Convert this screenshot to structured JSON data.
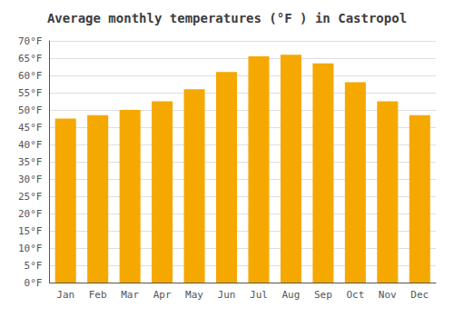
{
  "chart_data": {
    "type": "bar",
    "title": "Average monthly temperatures (°F ) in Castropol",
    "categories": [
      "Jan",
      "Feb",
      "Mar",
      "Apr",
      "May",
      "Jun",
      "Jul",
      "Aug",
      "Sep",
      "Oct",
      "Nov",
      "Dec"
    ],
    "values": [
      47.5,
      48.5,
      50.0,
      52.5,
      56.0,
      61.0,
      65.5,
      66.0,
      63.5,
      58.0,
      52.5,
      48.5
    ],
    "color": "#F5A800",
    "ylim": [
      0,
      70
    ],
    "yticks": [
      {
        "value": 0,
        "label": "0°F"
      },
      {
        "value": 5,
        "label": "5°F"
      },
      {
        "value": 10,
        "label": "10°F"
      },
      {
        "value": 15,
        "label": "15°F"
      },
      {
        "value": 20,
        "label": "20°F"
      },
      {
        "value": 25,
        "label": "25°F"
      },
      {
        "value": 30,
        "label": "30°F"
      },
      {
        "value": 35,
        "label": "35°F"
      },
      {
        "value": 40,
        "label": "40°F"
      },
      {
        "value": 45,
        "label": "45°F"
      },
      {
        "value": 50,
        "label": "50°F"
      },
      {
        "value": 55,
        "label": "55°F"
      },
      {
        "value": 60,
        "label": "60°F"
      },
      {
        "value": 65,
        "label": "65°F"
      },
      {
        "value": 70,
        "label": "70°F"
      }
    ],
    "grid": true
  }
}
